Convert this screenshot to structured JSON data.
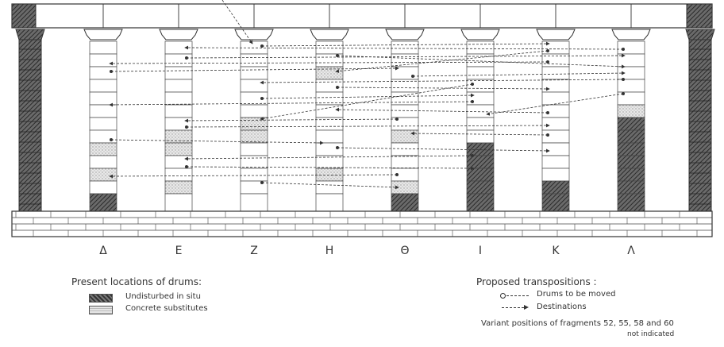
{
  "column_letters": [
    "Δ",
    "Ε",
    "Ζ",
    "Η",
    "Θ",
    "Ι",
    "Κ",
    "Λ"
  ],
  "legend_left": {
    "title": "Present locations of drums:",
    "items": [
      {
        "label": "Undisturbed in situ",
        "pattern": "dark-hatch"
      },
      {
        "label": "Concrete substitutes",
        "pattern": "light-stipple"
      }
    ]
  },
  "legend_right": {
    "title": "Proposed transpositions :",
    "items": [
      {
        "label": "Drums to be moved",
        "symbol": "circle-dashed"
      },
      {
        "label": "Destinations",
        "symbol": "dashed-arrow"
      }
    ],
    "note_line1": "Variant positions of fragments 52, 55, 58 and 60",
    "note_line2": "not indicated"
  },
  "colors": {
    "ink": "#333333",
    "hatch": "#555555",
    "paper": "#ffffff"
  }
}
